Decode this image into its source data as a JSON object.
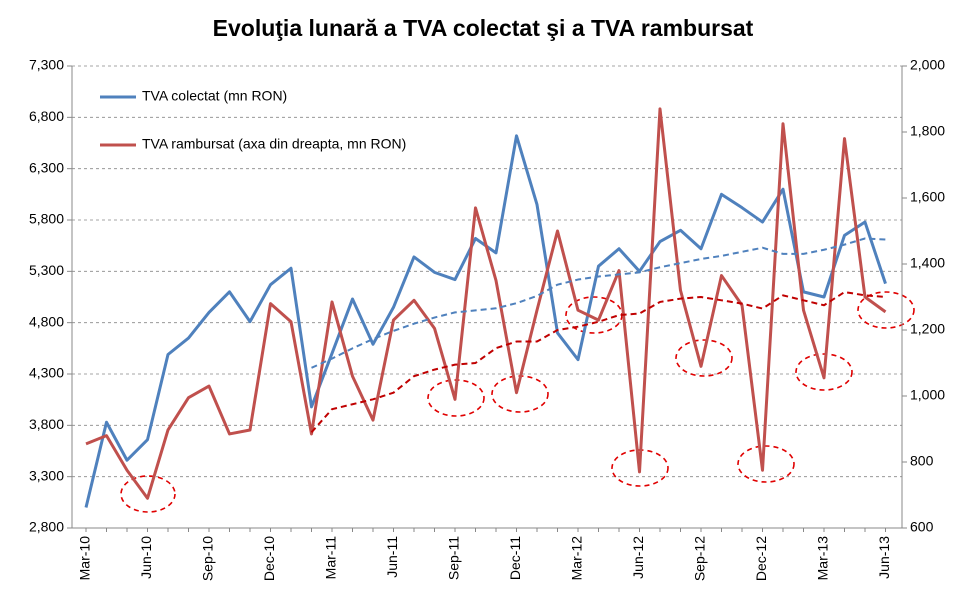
{
  "chart_data": {
    "type": "line",
    "title": "Evoluţia lunară a TVA colectat şi a TVA rambursat",
    "categories": [
      "Mar-10",
      null,
      null,
      "Jun-10",
      null,
      null,
      "Sep-10",
      null,
      null,
      "Dec-10",
      null,
      null,
      "Mar-11",
      null,
      null,
      "Jun-11",
      null,
      null,
      "Sep-11",
      null,
      null,
      "Dec-11",
      null,
      null,
      "Mar-12",
      null,
      null,
      "Jun-12",
      null,
      null,
      "Sep-12",
      null,
      null,
      "Dec-12",
      null,
      null,
      "Mar-13",
      null,
      null,
      "Jun-13"
    ],
    "series": [
      {
        "name": "TVA colectat (mn RON)",
        "color": "#4f81bd",
        "values": [
          3000,
          3830,
          3460,
          3660,
          4490,
          4650,
          4900,
          5100,
          4810,
          5170,
          5330,
          3980,
          4500,
          5030,
          4590,
          4950,
          5440,
          5290,
          5220,
          5620,
          5480,
          6620,
          5950,
          4700,
          4440,
          5350,
          5520,
          5300,
          5590,
          5700,
          5520,
          6050,
          5920,
          5780,
          6100,
          5100,
          5050,
          5650,
          5780,
          5180
        ]
      },
      {
        "name": "TVA rambursat (axa din dreapta, mn RON)",
        "color": "#c0504d",
        "axis": "y2",
        "values": [
          855,
          880,
          775,
          690,
          897,
          995,
          1030,
          885,
          897,
          1280,
          1225,
          885,
          1285,
          1060,
          927,
          1230,
          1290,
          1205,
          990,
          1570,
          1350,
          1010,
          1260,
          1500,
          1260,
          1230,
          1380,
          770,
          1870,
          1320,
          1090,
          1365,
          1275,
          775,
          1825,
          1260,
          1055,
          1780,
          1300,
          1255
        ]
      },
      {
        "color": "#4f81bd",
        "dashed": true,
        "values": [
          null,
          null,
          null,
          null,
          null,
          null,
          null,
          null,
          null,
          null,
          null,
          4360,
          4450,
          4550,
          4640,
          4720,
          4790,
          4850,
          4900,
          4920,
          4940,
          4990,
          5060,
          5170,
          5220,
          5250,
          5270,
          5290,
          5340,
          5380,
          5420,
          5450,
          5490,
          5530,
          5470,
          5470,
          5510,
          5560,
          5620,
          5610
        ]
      },
      {
        "color": "#c00000",
        "dashed": true,
        "axis": "y2",
        "values": [
          null,
          null,
          null,
          null,
          null,
          null,
          null,
          null,
          null,
          null,
          null,
          890,
          960,
          975,
          990,
          1010,
          1060,
          1080,
          1095,
          1100,
          1145,
          1165,
          1165,
          1200,
          1210,
          1225,
          1245,
          1250,
          1285,
          1295,
          1300,
          1290,
          1280,
          1265,
          1305,
          1290,
          1275,
          1315,
          1305,
          1300
        ]
      }
    ],
    "ylim": [
      2800,
      7300
    ],
    "yticks": [
      {
        "value": 2800,
        "label": "2,800"
      },
      {
        "value": 3300,
        "label": "3,300"
      },
      {
        "value": 3800,
        "label": "3,800"
      },
      {
        "value": 4300,
        "label": "4,300"
      },
      {
        "value": 4800,
        "label": "4,800"
      },
      {
        "value": 5300,
        "label": "5,300"
      },
      {
        "value": 5800,
        "label": "5,800"
      },
      {
        "value": 6300,
        "label": "6,300"
      },
      {
        "value": 6800,
        "label": "6,800"
      },
      {
        "value": 7300,
        "label": "7,300"
      }
    ],
    "y2lim": [
      600,
      2000
    ],
    "y2ticks": [
      600,
      800,
      {
        "value": 1000,
        "label": "1,000"
      },
      {
        "value": 1200,
        "label": "1,200"
      },
      {
        "value": 1400,
        "label": "1,400"
      },
      {
        "value": 1600,
        "label": "1,600"
      },
      {
        "value": 1800,
        "label": "1,800"
      },
      {
        "value": 2000,
        "label": "2,000"
      }
    ],
    "grid": true,
    "legend": "upper-left"
  }
}
